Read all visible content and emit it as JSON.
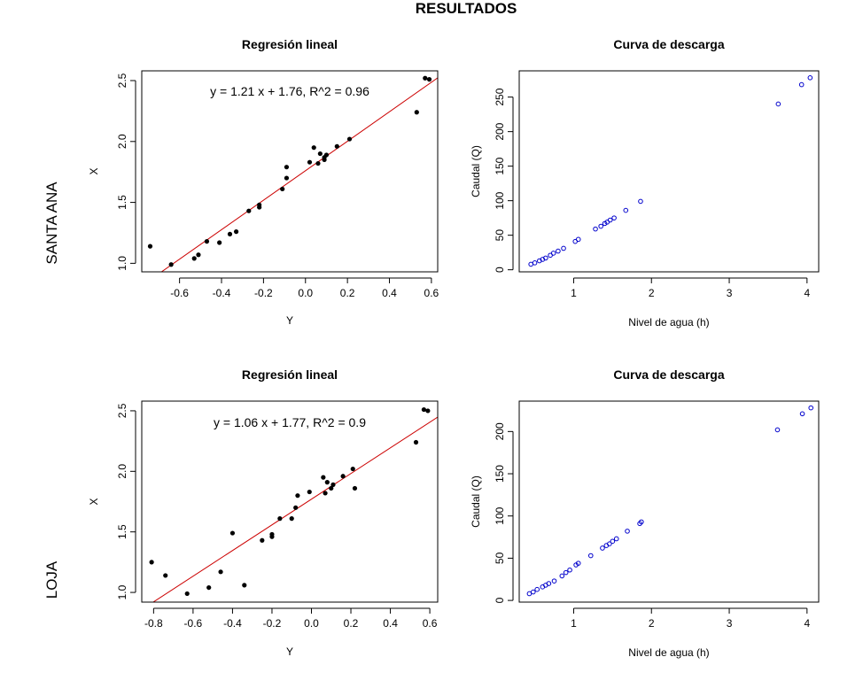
{
  "figure": {
    "title": "RESULTADOS",
    "row_labels": [
      "SANTA ANA",
      "LOJA"
    ]
  },
  "chart_data": [
    {
      "id": "santa-ana-regression",
      "type": "scatter",
      "title": "Regresión lineal",
      "xlabel": "Y",
      "ylabel": "X",
      "xlim": [
        -0.78,
        0.63
      ],
      "ylim": [
        0.93,
        2.58
      ],
      "xticks": [
        -0.6,
        -0.4,
        -0.2,
        0.0,
        0.2,
        0.4,
        0.6
      ],
      "xtick_labels": [
        "-0.6",
        "-0.4",
        "-0.2",
        "0.0",
        "0.2",
        "0.4",
        "0.6"
      ],
      "yticks": [
        1.0,
        1.5,
        2.0,
        2.5
      ],
      "ytick_labels": [
        "1.0",
        "1.5",
        "2.0",
        "2.5"
      ],
      "annotation": "y = 1.21 x + 1.76, R^2 = 0.96",
      "fit_line": {
        "slope": 1.21,
        "intercept": 1.76,
        "color": "#cc0000"
      },
      "point_color": "#000000",
      "points": [
        [
          -0.74,
          1.14
        ],
        [
          -0.64,
          0.99
        ],
        [
          -0.53,
          1.04
        ],
        [
          -0.51,
          1.07
        ],
        [
          -0.47,
          1.18
        ],
        [
          -0.41,
          1.17
        ],
        [
          -0.36,
          1.24
        ],
        [
          -0.33,
          1.26
        ],
        [
          -0.27,
          1.43
        ],
        [
          -0.22,
          1.46
        ],
        [
          -0.22,
          1.48
        ],
        [
          -0.11,
          1.61
        ],
        [
          -0.09,
          1.7
        ],
        [
          -0.09,
          1.79
        ],
        [
          0.02,
          1.83
        ],
        [
          0.04,
          1.95
        ],
        [
          0.06,
          1.82
        ],
        [
          0.07,
          1.9
        ],
        [
          0.09,
          1.85
        ],
        [
          0.09,
          1.87
        ],
        [
          0.1,
          1.89
        ],
        [
          0.15,
          1.96
        ],
        [
          0.21,
          2.02
        ],
        [
          0.53,
          2.24
        ],
        [
          0.57,
          2.52
        ],
        [
          0.59,
          2.51
        ]
      ]
    },
    {
      "id": "santa-ana-discharge",
      "type": "scatter",
      "title": "Curva de descarga",
      "xlabel": "Nivel de agua (h)",
      "ylabel": "Caudal (Q)",
      "xlim": [
        0.3,
        4.15
      ],
      "ylim": [
        -3,
        288
      ],
      "xticks": [
        1,
        2,
        3,
        4
      ],
      "xtick_labels": [
        "1",
        "2",
        "3",
        "4"
      ],
      "yticks": [
        0,
        50,
        100,
        150,
        200,
        250
      ],
      "ytick_labels": [
        "0",
        "50",
        "100",
        "150",
        "200",
        "250"
      ],
      "point_color": "#0000cc",
      "points": [
        [
          0.45,
          8
        ],
        [
          0.5,
          10
        ],
        [
          0.56,
          13
        ],
        [
          0.6,
          15
        ],
        [
          0.64,
          17
        ],
        [
          0.7,
          21
        ],
        [
          0.74,
          24
        ],
        [
          0.8,
          27
        ],
        [
          0.87,
          31
        ],
        [
          1.02,
          41
        ],
        [
          1.06,
          44
        ],
        [
          1.28,
          59
        ],
        [
          1.35,
          63
        ],
        [
          1.4,
          67
        ],
        [
          1.43,
          69
        ],
        [
          1.47,
          72
        ],
        [
          1.52,
          75
        ],
        [
          1.67,
          86
        ],
        [
          1.86,
          99
        ],
        [
          3.63,
          240
        ],
        [
          3.93,
          268
        ],
        [
          4.04,
          278
        ]
      ]
    },
    {
      "id": "loja-regression",
      "type": "scatter",
      "title": "Regresión lineal",
      "xlabel": "Y",
      "ylabel": "X",
      "xlim": [
        -0.86,
        0.64
      ],
      "ylim": [
        0.92,
        2.58
      ],
      "xticks": [
        -0.8,
        -0.6,
        -0.4,
        -0.2,
        0.0,
        0.2,
        0.4,
        0.6
      ],
      "xtick_labels": [
        "-0.8",
        "-0.6",
        "-0.4",
        "-0.2",
        "0.0",
        "0.2",
        "0.4",
        "0.6"
      ],
      "yticks": [
        1.0,
        1.5,
        2.0,
        2.5
      ],
      "ytick_labels": [
        "1.0",
        "1.5",
        "2.0",
        "2.5"
      ],
      "annotation": "y = 1.06 x + 1.77, R^2 = 0.9",
      "fit_line": {
        "slope": 1.06,
        "intercept": 1.77,
        "color": "#cc0000"
      },
      "point_color": "#000000",
      "points": [
        [
          -0.81,
          1.25
        ],
        [
          -0.74,
          1.14
        ],
        [
          -0.63,
          0.99
        ],
        [
          -0.52,
          1.04
        ],
        [
          -0.46,
          1.17
        ],
        [
          -0.4,
          1.49
        ],
        [
          -0.34,
          1.06
        ],
        [
          -0.25,
          1.43
        ],
        [
          -0.2,
          1.46
        ],
        [
          -0.2,
          1.48
        ],
        [
          -0.16,
          1.61
        ],
        [
          -0.1,
          1.61
        ],
        [
          -0.08,
          1.7
        ],
        [
          -0.07,
          1.8
        ],
        [
          -0.01,
          1.83
        ],
        [
          0.06,
          1.95
        ],
        [
          0.07,
          1.82
        ],
        [
          0.08,
          1.91
        ],
        [
          0.1,
          1.86
        ],
        [
          0.11,
          1.89
        ],
        [
          0.16,
          1.96
        ],
        [
          0.21,
          2.02
        ],
        [
          0.22,
          1.86
        ],
        [
          0.53,
          2.24
        ],
        [
          0.57,
          2.51
        ],
        [
          0.59,
          2.5
        ]
      ]
    },
    {
      "id": "loja-discharge",
      "type": "scatter",
      "title": "Curva de descarga",
      "xlabel": "Nivel de agua (h)",
      "ylabel": "Caudal (Q)",
      "xlim": [
        0.3,
        4.15
      ],
      "ylim": [
        -2,
        236
      ],
      "xticks": [
        1,
        2,
        3,
        4
      ],
      "xtick_labels": [
        "1",
        "2",
        "3",
        "4"
      ],
      "yticks": [
        0,
        50,
        100,
        150,
        200
      ],
      "ytick_labels": [
        "0",
        "50",
        "100",
        "150",
        "200"
      ],
      "point_color": "#0000cc",
      "points": [
        [
          0.43,
          8
        ],
        [
          0.48,
          10
        ],
        [
          0.53,
          13
        ],
        [
          0.6,
          16
        ],
        [
          0.64,
          18
        ],
        [
          0.68,
          20
        ],
        [
          0.75,
          23
        ],
        [
          0.85,
          29
        ],
        [
          0.9,
          33
        ],
        [
          0.95,
          36
        ],
        [
          1.03,
          42
        ],
        [
          1.06,
          44
        ],
        [
          1.22,
          53
        ],
        [
          1.37,
          62
        ],
        [
          1.42,
          65
        ],
        [
          1.46,
          67
        ],
        [
          1.5,
          70
        ],
        [
          1.55,
          73
        ],
        [
          1.69,
          82
        ],
        [
          1.85,
          91
        ],
        [
          1.87,
          93
        ],
        [
          3.62,
          202
        ],
        [
          3.94,
          221
        ],
        [
          4.05,
          228
        ]
      ]
    }
  ]
}
